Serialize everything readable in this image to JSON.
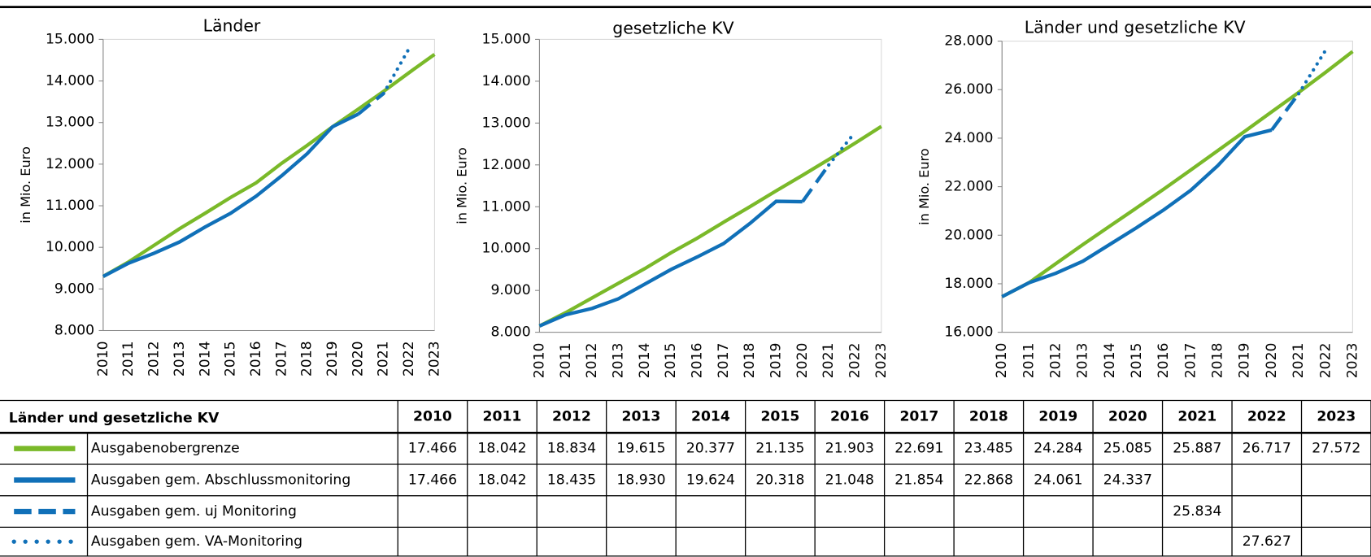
{
  "chart_data": [
    {
      "type": "line",
      "title": "Länder",
      "y_label": "in Mio. Euro",
      "categories": [
        2010,
        2011,
        2012,
        2013,
        2014,
        2015,
        2016,
        2017,
        2018,
        2019,
        2020,
        2021,
        2022,
        2023
      ],
      "ylim": [
        8000,
        15000
      ],
      "yticks": [
        {
          "value": 8000,
          "label": "8.000"
        },
        {
          "value": 9000,
          "label": "9.000"
        },
        {
          "value": 10000,
          "label": "10.000"
        },
        {
          "value": 11000,
          "label": "11.000"
        },
        {
          "value": 12000,
          "label": "12.000"
        },
        {
          "value": 13000,
          "label": "13.000"
        },
        {
          "value": 14000,
          "label": "14.000"
        },
        {
          "value": 15000,
          "label": "15.000"
        }
      ],
      "series": [
        {
          "name": "Ausgabenobergrenze",
          "color": "#7ab929",
          "dash": "solid",
          "values": [
            9300,
            9650,
            10050,
            10450,
            10820,
            11200,
            11550,
            12020,
            12450,
            12900,
            13320,
            13750,
            14200,
            14640
          ]
        },
        {
          "name": "Ausgaben gem. Abschlussmonitoring",
          "color": "#1070b8",
          "dash": "solid",
          "values": [
            9300,
            9620,
            9860,
            10130,
            10490,
            10820,
            11230,
            11720,
            12250,
            12900,
            13200,
            null,
            null,
            null
          ]
        },
        {
          "name": "Ausgaben gem. uj Monitoring",
          "color": "#1070b8",
          "dash": "dashed",
          "values": [
            null,
            null,
            null,
            null,
            null,
            null,
            null,
            null,
            null,
            null,
            13200,
            13700,
            null,
            null
          ]
        },
        {
          "name": "Ausgaben gem. VA-Monitoring",
          "color": "#1070b8",
          "dash": "dotted",
          "values": [
            null,
            null,
            null,
            null,
            null,
            null,
            null,
            null,
            null,
            null,
            null,
            13700,
            14780,
            null
          ]
        }
      ]
    },
    {
      "type": "line",
      "title": "gesetzliche KV",
      "y_label": "in Mio. Euro",
      "categories": [
        2010,
        2011,
        2012,
        2013,
        2014,
        2015,
        2016,
        2017,
        2018,
        2019,
        2020,
        2021,
        2022,
        2023
      ],
      "ylim": [
        8000,
        15000
      ],
      "yticks": [
        {
          "value": 8000,
          "label": "8.000"
        },
        {
          "value": 9000,
          "label": "9.000"
        },
        {
          "value": 10000,
          "label": "10.000"
        },
        {
          "value": 11000,
          "label": "11.000"
        },
        {
          "value": 12000,
          "label": "12.000"
        },
        {
          "value": 13000,
          "label": "13.000"
        },
        {
          "value": 14000,
          "label": "14.000"
        },
        {
          "value": 15000,
          "label": "15.000"
        }
      ],
      "series": [
        {
          "name": "Ausgabenobergrenze",
          "color": "#7ab929",
          "dash": "solid",
          "values": [
            8150,
            8470,
            8820,
            9170,
            9520,
            9900,
            10250,
            10630,
            11000,
            11380,
            11750,
            12130,
            12520,
            12920
          ]
        },
        {
          "name": "Ausgaben gem. Abschlussmonitoring",
          "color": "#1070b8",
          "dash": "solid",
          "values": [
            8150,
            8420,
            8570,
            8800,
            9150,
            9500,
            9800,
            10120,
            10600,
            11130,
            11120,
            null,
            null,
            null
          ]
        },
        {
          "name": "Ausgaben gem. uj Monitoring",
          "color": "#1070b8",
          "dash": "dashed",
          "values": [
            null,
            null,
            null,
            null,
            null,
            null,
            null,
            null,
            null,
            null,
            11120,
            12000,
            null,
            null
          ]
        },
        {
          "name": "Ausgaben gem. VA-Monitoring",
          "color": "#1070b8",
          "dash": "dotted",
          "values": [
            null,
            null,
            null,
            null,
            null,
            null,
            null,
            null,
            null,
            null,
            null,
            12000,
            12780,
            null
          ]
        }
      ]
    },
    {
      "type": "line",
      "title": "Länder und gesetzliche KV",
      "y_label": "in Mio. Euro",
      "categories": [
        2010,
        2011,
        2012,
        2013,
        2014,
        2015,
        2016,
        2017,
        2018,
        2019,
        2020,
        2021,
        2022,
        2023
      ],
      "ylim": [
        16000,
        28000
      ],
      "yticks": [
        {
          "value": 16000,
          "label": "16.000"
        },
        {
          "value": 18000,
          "label": "18.000"
        },
        {
          "value": 20000,
          "label": "20.000"
        },
        {
          "value": 22000,
          "label": "22.000"
        },
        {
          "value": 24000,
          "label": "24.000"
        },
        {
          "value": 26000,
          "label": "26.000"
        },
        {
          "value": 28000,
          "label": "28.000"
        }
      ],
      "series": [
        {
          "name": "Ausgabenobergrenze",
          "color": "#7ab929",
          "dash": "solid",
          "values": [
            17466,
            18042,
            18834,
            19615,
            20377,
            21135,
            21903,
            22691,
            23485,
            24284,
            25085,
            25887,
            26717,
            27572
          ]
        },
        {
          "name": "Ausgaben gem. Abschlussmonitoring",
          "color": "#1070b8",
          "dash": "solid",
          "values": [
            17466,
            18042,
            18435,
            18930,
            19624,
            20318,
            21048,
            21854,
            22868,
            24061,
            24337,
            null,
            null,
            null
          ]
        },
        {
          "name": "Ausgaben gem. uj Monitoring",
          "color": "#1070b8",
          "dash": "dashed",
          "values": [
            null,
            null,
            null,
            null,
            null,
            null,
            null,
            null,
            null,
            null,
            24337,
            25834,
            null,
            null
          ]
        },
        {
          "name": "Ausgaben gem. VA-Monitoring",
          "color": "#1070b8",
          "dash": "dotted",
          "values": [
            null,
            null,
            null,
            null,
            null,
            null,
            null,
            null,
            null,
            null,
            null,
            25834,
            27627,
            null
          ]
        }
      ]
    }
  ],
  "table": {
    "title": "Länder und gesetzliche KV",
    "columns": [
      2010,
      2011,
      2012,
      2013,
      2014,
      2015,
      2016,
      2017,
      2018,
      2019,
      2020,
      2021,
      2022,
      2023
    ],
    "rows": [
      {
        "name": "Ausgabenobergrenze",
        "cells": [
          "17.466",
          "18.042",
          "18.834",
          "19.615",
          "20.377",
          "21.135",
          "21.903",
          "22.691",
          "23.485",
          "24.284",
          "25.085",
          "25.887",
          "26.717",
          "27.572"
        ]
      },
      {
        "name": "Ausgaben gem. Abschlussmonitoring",
        "cells": [
          "17.466",
          "18.042",
          "18.435",
          "18.930",
          "19.624",
          "20.318",
          "21.048",
          "21.854",
          "22.868",
          "24.061",
          "24.337",
          null,
          null,
          null
        ]
      },
      {
        "name": "Ausgaben gem. uj Monitoring",
        "cells": [
          null,
          null,
          null,
          null,
          null,
          null,
          null,
          null,
          null,
          null,
          null,
          "25.834",
          null,
          null
        ]
      },
      {
        "name": "Ausgaben gem. VA-Monitoring",
        "cells": [
          null,
          null,
          null,
          null,
          null,
          null,
          null,
          null,
          null,
          null,
          null,
          null,
          "27.627",
          null
        ]
      }
    ]
  }
}
